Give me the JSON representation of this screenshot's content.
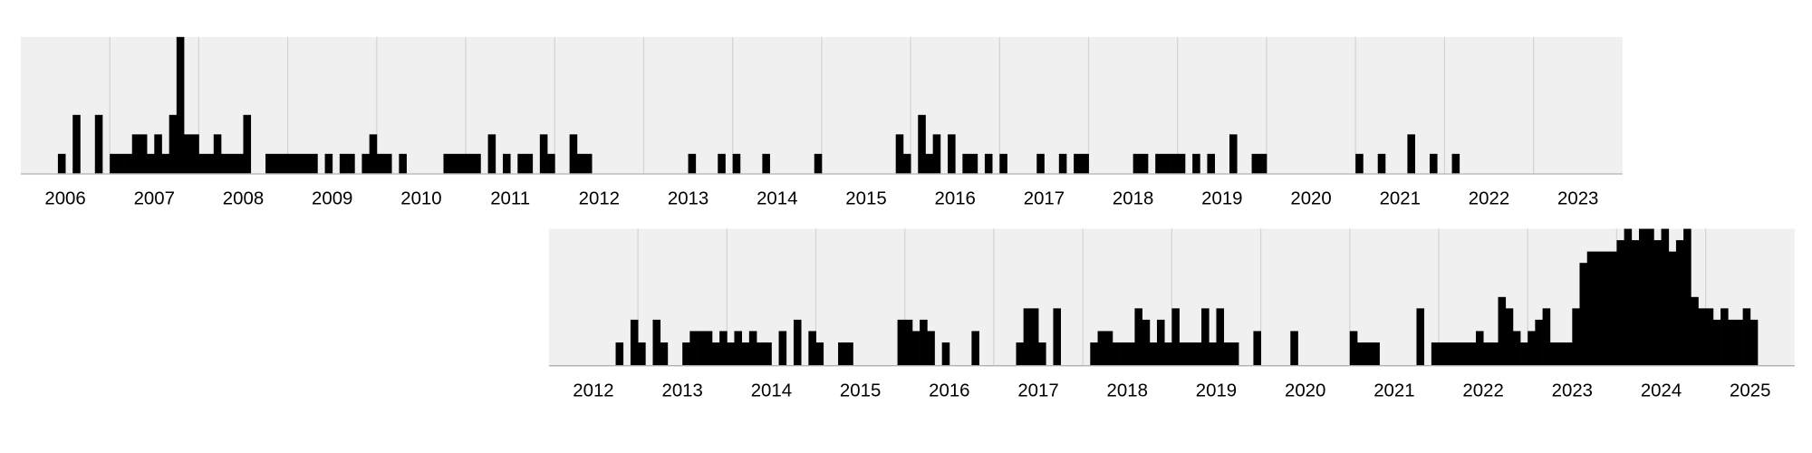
{
  "chart_data": [
    {
      "type": "bar",
      "color": "#000000",
      "grid": true,
      "xlim": [
        2006,
        2024
      ],
      "ylim": [
        0,
        7
      ],
      "xticks": [
        {
          "value": 2006.5,
          "label": "2006"
        },
        {
          "value": 2007.5,
          "label": "2007"
        },
        {
          "value": 2008.5,
          "label": "2008"
        },
        {
          "value": 2009.5,
          "label": "2009"
        },
        {
          "value": 2010.5,
          "label": "2010"
        },
        {
          "value": 2011.5,
          "label": "2011"
        },
        {
          "value": 2012.5,
          "label": "2012"
        },
        {
          "value": 2013.5,
          "label": "2013"
        },
        {
          "value": 2014.5,
          "label": "2014"
        },
        {
          "value": 2015.5,
          "label": "2015"
        },
        {
          "value": 2016.5,
          "label": "2016"
        },
        {
          "value": 2017.5,
          "label": "2017"
        },
        {
          "value": 2018.5,
          "label": "2018"
        },
        {
          "value": 2019.5,
          "label": "2019"
        },
        {
          "value": 2020.5,
          "label": "2020"
        },
        {
          "value": 2021.5,
          "label": "2021"
        },
        {
          "value": 2022.5,
          "label": "2022"
        },
        {
          "value": 2023.5,
          "label": "2023"
        }
      ],
      "x": [
        2006.417,
        2006.583,
        2006.833,
        2007,
        2007.083,
        2007.167,
        2007.25,
        2007.333,
        2007.417,
        2007.5,
        2007.583,
        2007.667,
        2007.75,
        2007.833,
        2007.917,
        2008,
        2008.083,
        2008.167,
        2008.25,
        2008.333,
        2008.417,
        2008.5,
        2008.75,
        2008.833,
        2008.917,
        2009,
        2009.083,
        2009.167,
        2009.25,
        2009.417,
        2009.583,
        2009.667,
        2009.833,
        2009.917,
        2010,
        2010.083,
        2010.25,
        2010.75,
        2010.833,
        2010.917,
        2011,
        2011.083,
        2011.25,
        2011.417,
        2011.583,
        2011.667,
        2011.833,
        2011.917,
        2012.167,
        2012.25,
        2012.333,
        2013.5,
        2013.833,
        2014,
        2014.333,
        2014.917,
        2015.833,
        2015.917,
        2016.083,
        2016.167,
        2016.25,
        2016.417,
        2016.583,
        2016.667,
        2016.833,
        2017,
        2017.417,
        2017.667,
        2017.833,
        2017.917,
        2018.5,
        2018.583,
        2018.75,
        2018.833,
        2018.917,
        2019,
        2019.167,
        2019.333,
        2019.583,
        2019.833,
        2019.917,
        2021,
        2021.25,
        2021.583,
        2021.833,
        2022.083
      ],
      "values": [
        1,
        3,
        3,
        1,
        1,
        1,
        2,
        2,
        1,
        2,
        1,
        3,
        7,
        2,
        2,
        1,
        1,
        2,
        1,
        1,
        1,
        3,
        1,
        1,
        1,
        1,
        1,
        1,
        1,
        1,
        1,
        1,
        1,
        2,
        1,
        1,
        1,
        1,
        1,
        1,
        1,
        1,
        2,
        1,
        1,
        1,
        2,
        1,
        2,
        1,
        1,
        1,
        1,
        1,
        1,
        1,
        2,
        1,
        3,
        1,
        2,
        2,
        1,
        1,
        1,
        1,
        1,
        1,
        1,
        1,
        1,
        1,
        1,
        1,
        1,
        1,
        1,
        1,
        2,
        1,
        1,
        1,
        1,
        2,
        1,
        1
      ]
    },
    {
      "type": "bar",
      "color": "#000000",
      "grid": true,
      "xlim": [
        2012,
        2026
      ],
      "ylim": [
        0,
        12
      ],
      "xticks": [
        {
          "value": 2012.5,
          "label": "2012"
        },
        {
          "value": 2013.5,
          "label": "2013"
        },
        {
          "value": 2014.5,
          "label": "2014"
        },
        {
          "value": 2015.5,
          "label": "2015"
        },
        {
          "value": 2016.5,
          "label": "2016"
        },
        {
          "value": 2017.5,
          "label": "2017"
        },
        {
          "value": 2018.5,
          "label": "2018"
        },
        {
          "value": 2019.5,
          "label": "2019"
        },
        {
          "value": 2020.5,
          "label": "2020"
        },
        {
          "value": 2021.5,
          "label": "2021"
        },
        {
          "value": 2022.5,
          "label": "2022"
        },
        {
          "value": 2023.5,
          "label": "2023"
        },
        {
          "value": 2024.5,
          "label": "2024"
        },
        {
          "value": 2025.5,
          "label": "2025"
        }
      ],
      "x": [
        2012.75,
        2012.917,
        2013,
        2013.167,
        2013.25,
        2013.5,
        2013.583,
        2013.667,
        2013.75,
        2013.833,
        2013.917,
        2014,
        2014.083,
        2014.167,
        2014.25,
        2014.333,
        2014.417,
        2014.583,
        2014.75,
        2014.917,
        2015,
        2015.25,
        2015.333,
        2015.917,
        2016,
        2016.083,
        2016.167,
        2016.25,
        2016.417,
        2016.75,
        2017.25,
        2017.333,
        2017.417,
        2017.5,
        2017.667,
        2018.083,
        2018.167,
        2018.25,
        2018.333,
        2018.417,
        2018.5,
        2018.583,
        2018.667,
        2018.75,
        2018.833,
        2018.917,
        2019,
        2019.083,
        2019.167,
        2019.25,
        2019.333,
        2019.417,
        2019.5,
        2019.583,
        2019.667,
        2019.917,
        2020.333,
        2021,
        2021.083,
        2021.167,
        2021.25,
        2021.75,
        2021.917,
        2022,
        2022.083,
        2022.167,
        2022.25,
        2022.333,
        2022.417,
        2022.5,
        2022.583,
        2022.667,
        2022.75,
        2022.833,
        2022.917,
        2023,
        2023.083,
        2023.167,
        2023.25,
        2023.333,
        2023.417,
        2023.5,
        2023.583,
        2023.667,
        2023.75,
        2023.833,
        2023.917,
        2024,
        2024.083,
        2024.167,
        2024.25,
        2024.333,
        2024.417,
        2024.5,
        2024.583,
        2024.667,
        2024.75,
        2024.833,
        2024.917,
        2025,
        2025.083,
        2025.167,
        2025.25,
        2025.333,
        2025.417,
        2025.5
      ],
      "values": [
        2,
        4,
        2,
        4,
        2,
        2,
        3,
        3,
        3,
        2,
        3,
        2,
        3,
        2,
        3,
        2,
        2,
        3,
        4,
        3,
        2,
        2,
        2,
        4,
        4,
        3,
        4,
        3,
        2,
        3,
        2,
        5,
        5,
        2,
        5,
        2,
        3,
        3,
        2,
        2,
        2,
        5,
        4,
        2,
        4,
        2,
        5,
        2,
        2,
        2,
        5,
        2,
        5,
        2,
        2,
        3,
        3,
        3,
        2,
        2,
        2,
        5,
        2,
        2,
        2,
        2,
        2,
        2,
        3,
        2,
        2,
        6,
        5,
        3,
        2,
        3,
        4,
        5,
        2,
        2,
        2,
        5,
        9,
        10,
        10,
        10,
        10,
        11,
        12,
        11,
        12,
        12,
        11,
        12,
        10,
        11,
        12,
        6,
        5,
        5,
        4,
        5,
        4,
        4,
        5,
        4
      ]
    }
  ]
}
